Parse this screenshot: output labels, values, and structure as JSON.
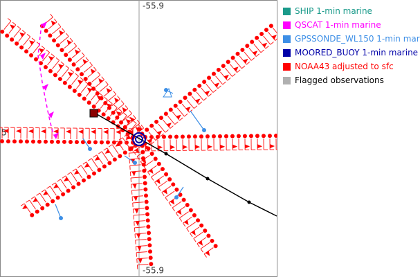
{
  "map": {
    "top_label": "-55.9",
    "bottom_label": "-55.9",
    "left_label": "5"
  },
  "legend": {
    "items": [
      {
        "label": "SHIP 1-min marine",
        "color": "#1a9a8a",
        "text_color": "#1a9a8a"
      },
      {
        "label": "QSCAT 1-min marine",
        "color": "#ff00ff",
        "text_color": "#ff00ff"
      },
      {
        "label": "GPSSONDE_WL150 1-min mar",
        "color": "#3d8fe6",
        "text_color": "#3d8fe6"
      },
      {
        "label": "MOORED_BUOY 1-min marine",
        "color": "#0000a8",
        "text_color": "#0000a8"
      },
      {
        "label": "NOAA43 adjusted to sfc",
        "color": "#ff0000",
        "text_color": "#ff0000"
      },
      {
        "label": "Flagged observations",
        "color": "#b0b0b0",
        "text_color": "#000000"
      }
    ]
  }
}
